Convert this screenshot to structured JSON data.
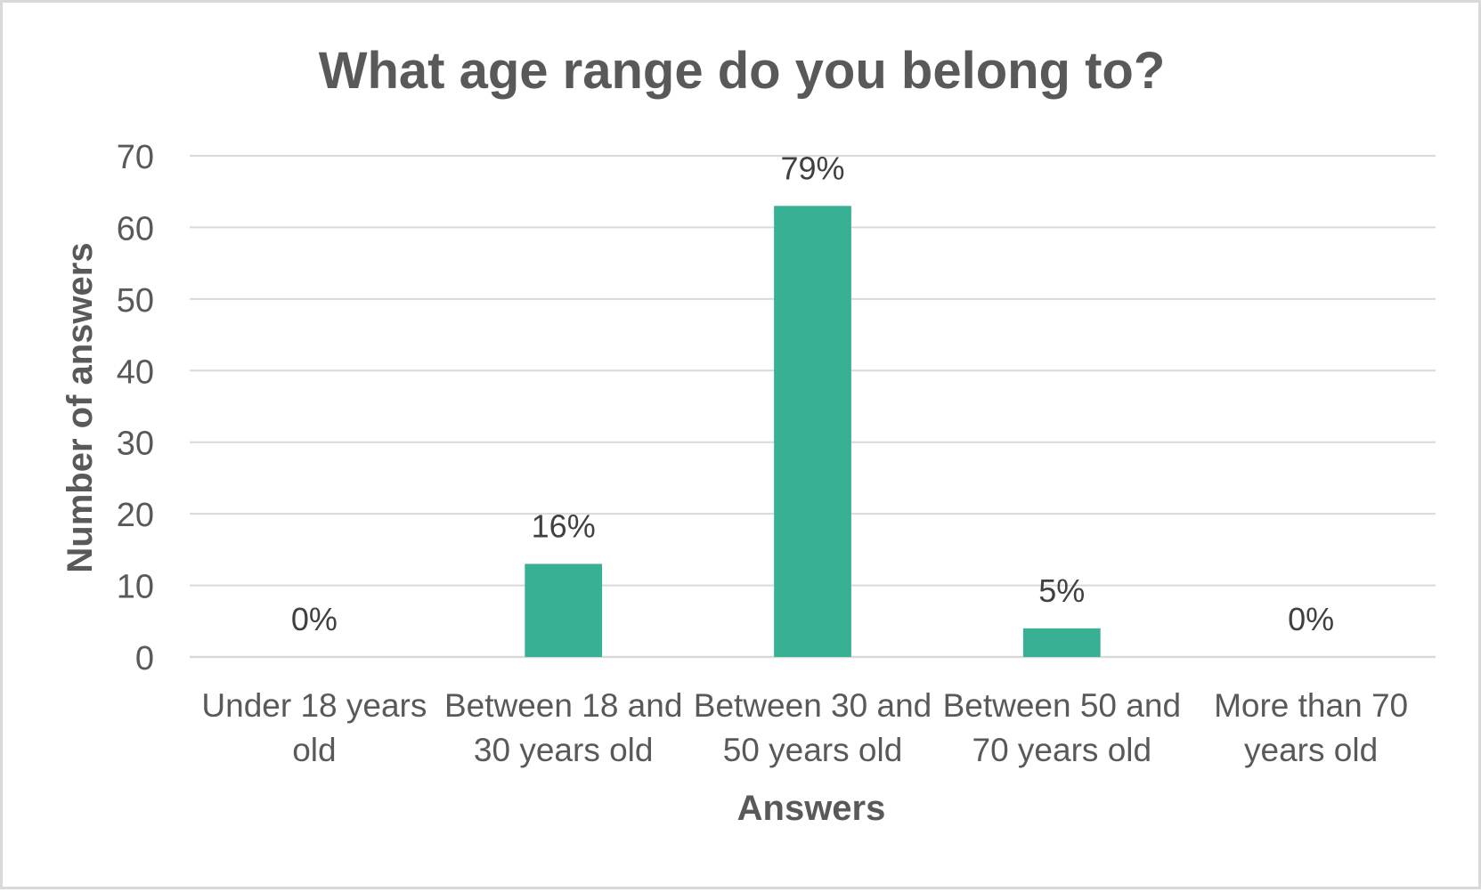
{
  "chart_data": {
    "type": "bar",
    "title": "What age range do you belong to?",
    "xlabel": "Answers",
    "ylabel": "Number of answers",
    "categories": [
      [
        "Under 18 years",
        "old"
      ],
      [
        "Between 18 and",
        "30 years old"
      ],
      [
        "Between 30 and",
        "50 years old"
      ],
      [
        "Between 50 and",
        "70 years old"
      ],
      [
        "More than 70",
        "years old"
      ]
    ],
    "values": [
      0,
      13,
      63,
      4,
      0
    ],
    "data_labels": [
      "0%",
      "16%",
      "79%",
      "5%",
      "0%"
    ],
    "ylim": [
      0,
      70
    ],
    "yticks": [
      0,
      10,
      20,
      30,
      40,
      50,
      60,
      70
    ],
    "grid": true,
    "legend": "none",
    "colors": {
      "bar": "#37b094",
      "grid": "#d9d9d9",
      "text": "#595959"
    }
  }
}
